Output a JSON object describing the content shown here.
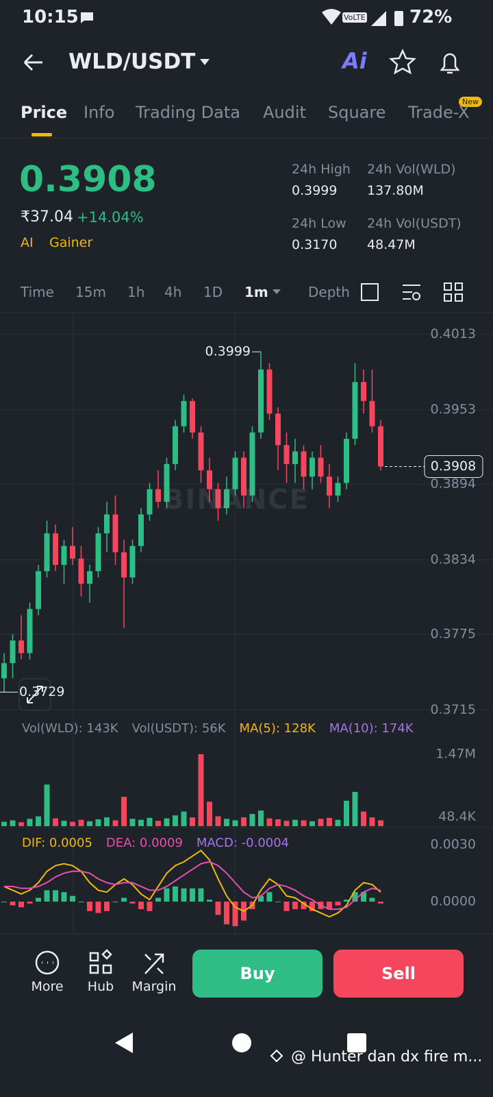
{
  "status_bar": {
    "time": "10:15",
    "network": "VoLTE",
    "battery": "72%"
  },
  "header": {
    "pair": "WLD/USDT",
    "ai": "Ai"
  },
  "tabs": [
    "Price",
    "Info",
    "Trading Data",
    "Audit",
    "Square",
    "Trade-X"
  ],
  "new_badge": "New",
  "ticker": {
    "price": "0.3908",
    "fiat": "₹37.04",
    "change": "+14.04%",
    "tags": [
      "AI",
      "Gainer"
    ],
    "stats": [
      {
        "label": "24h High",
        "value": "0.3999"
      },
      {
        "label": "24h Vol(WLD)",
        "value": "137.80M"
      },
      {
        "label": "24h Low",
        "value": "0.3170"
      },
      {
        "label": "24h Vol(USDT)",
        "value": "48.47M"
      }
    ]
  },
  "intervals": [
    "Time",
    "15m",
    "1h",
    "4h",
    "1D",
    "1m",
    "Depth"
  ],
  "watermark": "BINANCE",
  "chart_data": [
    {
      "type": "candlestick",
      "up_color": "#2ebd85",
      "down_color": "#f6465d",
      "grid": true,
      "ylim": [
        0.3707,
        0.4029
      ],
      "yticks": [
        0.4013,
        0.3953,
        0.3894,
        0.3834,
        0.3775,
        0.3715
      ],
      "high_label": 0.3999,
      "low_label": 0.3729,
      "last_price": 0.3908,
      "ohlc": [
        [
          0.374,
          0.376,
          0.3729,
          0.3752
        ],
        [
          0.3752,
          0.3775,
          0.374,
          0.377
        ],
        [
          0.377,
          0.379,
          0.3755,
          0.376
        ],
        [
          0.376,
          0.38,
          0.3755,
          0.3795
        ],
        [
          0.3795,
          0.383,
          0.379,
          0.3825
        ],
        [
          0.3825,
          0.3865,
          0.382,
          0.3855
        ],
        [
          0.3855,
          0.3862,
          0.3825,
          0.383
        ],
        [
          0.383,
          0.385,
          0.3815,
          0.3845
        ],
        [
          0.3845,
          0.386,
          0.383,
          0.3835
        ],
        [
          0.3835,
          0.3845,
          0.3805,
          0.3815
        ],
        [
          0.3815,
          0.383,
          0.38,
          0.3825
        ],
        [
          0.3825,
          0.386,
          0.382,
          0.3855
        ],
        [
          0.3855,
          0.388,
          0.384,
          0.387
        ],
        [
          0.387,
          0.3885,
          0.383,
          0.384
        ],
        [
          0.384,
          0.385,
          0.378,
          0.382
        ],
        [
          0.382,
          0.385,
          0.3815,
          0.3845
        ],
        [
          0.3845,
          0.3875,
          0.384,
          0.387
        ],
        [
          0.387,
          0.3895,
          0.3865,
          0.389
        ],
        [
          0.389,
          0.3905,
          0.3875,
          0.388
        ],
        [
          0.388,
          0.3915,
          0.3875,
          0.391
        ],
        [
          0.391,
          0.3945,
          0.3905,
          0.394
        ],
        [
          0.394,
          0.3965,
          0.3935,
          0.396
        ],
        [
          0.396,
          0.3962,
          0.393,
          0.3935
        ],
        [
          0.3935,
          0.394,
          0.3895,
          0.3905
        ],
        [
          0.3905,
          0.3915,
          0.388,
          0.389
        ],
        [
          0.389,
          0.3895,
          0.3865,
          0.3875
        ],
        [
          0.3875,
          0.39,
          0.387,
          0.389
        ],
        [
          0.389,
          0.392,
          0.3885,
          0.3915
        ],
        [
          0.3915,
          0.392,
          0.3875,
          0.3885
        ],
        [
          0.3885,
          0.394,
          0.388,
          0.3935
        ],
        [
          0.3935,
          0.3999,
          0.393,
          0.3985
        ],
        [
          0.3985,
          0.399,
          0.3945,
          0.395
        ],
        [
          0.395,
          0.3955,
          0.3905,
          0.3925
        ],
        [
          0.3925,
          0.3935,
          0.3895,
          0.391
        ],
        [
          0.391,
          0.393,
          0.3895,
          0.392
        ],
        [
          0.392,
          0.3925,
          0.389,
          0.39
        ],
        [
          0.39,
          0.392,
          0.389,
          0.3915
        ],
        [
          0.3915,
          0.3925,
          0.3895,
          0.39
        ],
        [
          0.39,
          0.391,
          0.3875,
          0.3885
        ],
        [
          0.3885,
          0.39,
          0.388,
          0.3895
        ],
        [
          0.3895,
          0.3935,
          0.389,
          0.393
        ],
        [
          0.393,
          0.399,
          0.3925,
          0.3975
        ],
        [
          0.3975,
          0.3985,
          0.395,
          0.396
        ],
        [
          0.396,
          0.3985,
          0.3935,
          0.394
        ],
        [
          0.394,
          0.3945,
          0.3905,
          0.3908
        ]
      ]
    },
    {
      "type": "volume",
      "legend": [
        "Vol(WLD): 143K",
        "Vol(USDT): 56K",
        "MA(5): 128K",
        "MA(10): 174K"
      ],
      "legend_colors": [
        "#848e9c",
        "#848e9c",
        "#f0b90b",
        "#a873e8"
      ],
      "ylim": [
        0,
        1470000
      ],
      "yticks": [
        {
          "value": 1470000,
          "label": "1.47M"
        },
        {
          "value": 48400,
          "label": "48.4K"
        }
      ],
      "values": [
        90000,
        120000,
        80000,
        150000,
        200000,
        850000,
        160000,
        110000,
        90000,
        130000,
        100000,
        140000,
        180000,
        120000,
        600000,
        150000,
        130000,
        170000,
        110000,
        160000,
        220000,
        300000,
        180000,
        1470000,
        500000,
        200000,
        150000,
        120000,
        180000,
        250000,
        320000,
        160000,
        140000,
        110000,
        130000,
        120000,
        100000,
        150000,
        170000,
        130000,
        520000,
        700000,
        300000,
        180000,
        120000
      ]
    },
    {
      "type": "macd",
      "legend": [
        "DIF: 0.0005",
        "DEA: 0.0009",
        "MACD: -0.0004"
      ],
      "dif_color": "#f0b90b",
      "dea_color": "#e84fb1",
      "legend_colors": [
        "#f0b90b",
        "#e84fb1",
        "#a873e8"
      ],
      "ylim": [
        -0.0017,
        0.0038
      ],
      "yticks": [
        {
          "value": 0.003,
          "label": "0.0030"
        },
        {
          "value": 0,
          "label": "0.0000"
        }
      ],
      "dif": [
        0.0008,
        0.0006,
        0.0004,
        0.0006,
        0.001,
        0.0016,
        0.0019,
        0.002,
        0.0019,
        0.0016,
        0.001,
        0.0006,
        0.0005,
        0.0009,
        0.0012,
        0.0009,
        0.0004,
        0.0001,
        0.0008,
        0.0015,
        0.0019,
        0.0021,
        0.0024,
        0.0027,
        0.0022,
        0.0012,
        0.0003,
        -0.0003,
        -0.0005,
        -0.0002,
        0.0006,
        0.0012,
        0.0009,
        0.0003,
        0.0002,
        -0.0001,
        -0.0004,
        -0.0006,
        -0.0008,
        -0.0006,
        -0.0002,
        0.0006,
        0.001,
        0.0009,
        0.0005
      ],
      "dea": [
        0.0008,
        0.0008,
        0.0007,
        0.0007,
        0.0008,
        0.001,
        0.0013,
        0.0015,
        0.0016,
        0.0016,
        0.0015,
        0.0012,
        0.001,
        0.0009,
        0.001,
        0.001,
        0.0008,
        0.0006,
        0.0006,
        0.0008,
        0.0011,
        0.0014,
        0.0017,
        0.002,
        0.0021,
        0.0019,
        0.0015,
        0.001,
        0.0005,
        0.0002,
        0.0003,
        0.0007,
        0.0009,
        0.0008,
        0.0006,
        0.0003,
        0.0001,
        -0.0002,
        -0.0004,
        -0.0004,
        -0.0003,
        0.0001,
        0.0005,
        0.0007,
        0.0006
      ],
      "hist": [
        0,
        -0.0002,
        -0.0003,
        -0.0001,
        0.0002,
        0.0006,
        0.0006,
        0.0005,
        0.0003,
        0,
        -0.0005,
        -0.0006,
        -0.0005,
        0,
        0.0002,
        -0.0001,
        -0.0004,
        -0.0005,
        0.0002,
        0.0007,
        0.0008,
        0.0007,
        0.0007,
        0.0007,
        0.0001,
        -0.0007,
        -0.0012,
        -0.0013,
        -0.001,
        -0.0004,
        0.0003,
        0.0005,
        0,
        -0.0005,
        -0.0004,
        -0.0004,
        -0.0005,
        -0.0004,
        -0.0004,
        -0.0002,
        0.0001,
        0.0005,
        0.0005,
        0.0002,
        -0.0001
      ]
    }
  ],
  "actions": [
    "More",
    "Hub",
    "Margin"
  ],
  "buy": "Buy",
  "sell": "Sell",
  "footer_watermark": "@ Hunter dan dx fire m..."
}
